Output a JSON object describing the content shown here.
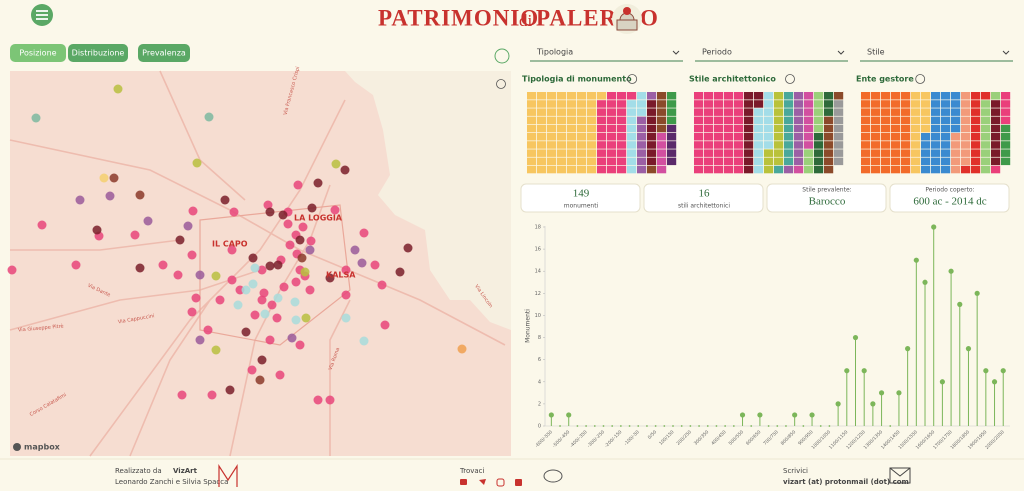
{
  "header": {
    "title": "PATRIMONIO",
    "title_small": "di",
    "title_end": "PALERMO"
  },
  "tabs": [
    "Posizione",
    "Distribuzione",
    "Prevalenza"
  ],
  "filters": [
    "Tipologia",
    "Periodo",
    "Stile"
  ],
  "map": {
    "labels": [
      "LA LOGGIA",
      "IL CAPO",
      "KALSA",
      "Via Francesco Crispi",
      "Via Cappuccini",
      "Via Giuseppe Pitrè",
      "Via Lincoln",
      "Via Roma",
      "Via Dante",
      "Corso Calatafimi"
    ],
    "attribution": "mapbox"
  },
  "waffles": [
    {
      "title": "Tipologia di monumento",
      "colors": [
        "#f7c660",
        "#ea3f7b",
        "#a3dde8",
        "#9b5fa5",
        "#7a1a2a",
        "#8b4a2a",
        "#d24fa0",
        "#3e9a4a",
        "#5a2a6a"
      ],
      "values": [
        71,
        30,
        12,
        8,
        8,
        6,
        5,
        4,
        5
      ]
    },
    {
      "title": "Stile architettonico",
      "colors": [
        "#ea3f7b",
        "#7a1a2a",
        "#a3dde8",
        "#b9c23a",
        "#4aa89a",
        "#9b5fa5",
        "#d24fa0",
        "#9ad07a",
        "#2e6a3a",
        "#8b4a2a",
        "#9a9a9a"
      ],
      "values": [
        50,
        12,
        15,
        12,
        10,
        10,
        8,
        8,
        8,
        8,
        8
      ]
    },
    {
      "title": "Ente gestore",
      "colors": [
        "#f26b2a",
        "#f7c660",
        "#3a8ad0",
        "#f29a7a",
        "#e0302a",
        "#9ad07a",
        "#7a1a2a",
        "#ea3f7b",
        "#3e9a4a"
      ],
      "values": [
        50,
        15,
        30,
        14,
        12,
        10,
        8,
        5,
        5
      ]
    }
  ],
  "stats": [
    {
      "value": 149,
      "label": "monumenti"
    },
    {
      "value": 16,
      "label": "stili architettonici"
    },
    {
      "label": "Stile prevalente:",
      "value": "Barocco"
    },
    {
      "label": "Periodo coperto:",
      "value": "600 ac - 2014 dc"
    }
  ],
  "chart_data": {
    "type": "lollipop",
    "y_label": "Monumenti",
    "color": "#7cb65a",
    "categories": [
      "-600/-550",
      null,
      "-500/-450",
      null,
      "-400/-350",
      null,
      "-300/-250",
      null,
      "-200/-150",
      null,
      "-100/-50",
      null,
      "0/50",
      null,
      "100/150",
      null,
      "200/250",
      null,
      "300/350",
      null,
      "400/450",
      null,
      "500/550",
      null,
      "600/650",
      null,
      "700/750",
      null,
      "800/850",
      null,
      "900/950",
      null,
      "1000/1050",
      null,
      "1100/1150",
      null,
      "1200/1250",
      null,
      "1300/1350",
      null,
      "1400/1450",
      null,
      "1500/1550",
      null,
      "1600/1650",
      null,
      "1700/1750",
      null,
      "1800/1850",
      null,
      "1900/1950",
      null,
      "2000/2050"
    ],
    "values": [
      1,
      0,
      1,
      0,
      0,
      0,
      0,
      0,
      0,
      0,
      0,
      0,
      0,
      0,
      0,
      0,
      0,
      0,
      0,
      0,
      0,
      0,
      1,
      0,
      1,
      0,
      0,
      0,
      1,
      0,
      1,
      0,
      0,
      2,
      5,
      8,
      5,
      2,
      3,
      0,
      3,
      7,
      15,
      13,
      18,
      4,
      14,
      11,
      7,
      12,
      5,
      4,
      5
    ],
    "ylim": [
      0,
      18
    ],
    "yticks": [
      0,
      2,
      4,
      6,
      8,
      10,
      12,
      14,
      16,
      18
    ]
  },
  "footer": {
    "made_by": "Realizzato da",
    "brand": "VizArt",
    "authors": "Leonardo Zanchi e Silvia Spacca",
    "find": "Trovaci",
    "write": "Scrivici",
    "email": "vizart (at) protonmail (dot) com"
  }
}
